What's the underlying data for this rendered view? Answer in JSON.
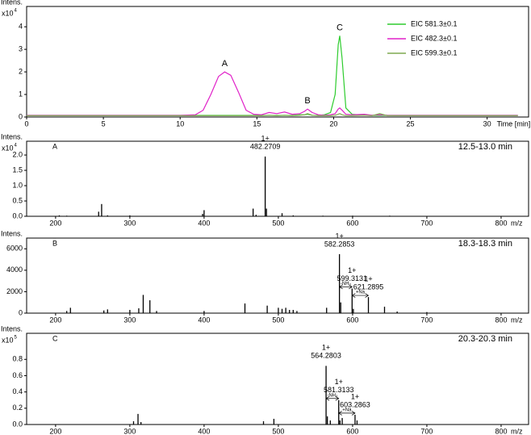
{
  "chart_data": [
    {
      "type": "line",
      "ylabel": "Intens.",
      "y_multiplier": "x10",
      "y_exponent": "4",
      "xlabel": "Time [min]",
      "xlim": [
        0,
        32.7
      ],
      "ylim": [
        0,
        4.9
      ],
      "xticks": [
        0,
        5,
        10,
        15,
        20,
        25,
        30
      ],
      "yticks": [
        0,
        1,
        2,
        3,
        4
      ],
      "legend": "upper right",
      "x": [
        0,
        2,
        4,
        6,
        8,
        10,
        11,
        11.5,
        12,
        12.5,
        12.9,
        13.3,
        13.8,
        14.3,
        14.8,
        15.3,
        15.8,
        16.3,
        16.8,
        17.3,
        17.8,
        18.1,
        18.3,
        18.6,
        19,
        19.4,
        19.8,
        20.1,
        20.3,
        20.4,
        20.55,
        20.8,
        21.2,
        22,
        22.5,
        23,
        23.5,
        24,
        26,
        28,
        30,
        32
      ],
      "series": [
        {
          "name": "EIC 581.3±0.1",
          "color": "#2ecc2e",
          "values": [
            0.07,
            0.07,
            0.07,
            0.07,
            0.07,
            0.07,
            0.07,
            0.07,
            0.07,
            0.07,
            0.07,
            0.07,
            0.07,
            0.07,
            0.07,
            0.07,
            0.07,
            0.07,
            0.07,
            0.07,
            0.1,
            0.1,
            0.12,
            0.08,
            0.07,
            0.1,
            0.2,
            1.0,
            3.2,
            3.6,
            2.6,
            0.4,
            0.12,
            0.08,
            0.07,
            0.07,
            0.07,
            0.07,
            0.07,
            0.07,
            0.07,
            0.07
          ]
        },
        {
          "name": "EIC 482.3±0.1",
          "color": "#e020c8",
          "values": [
            0.07,
            0.07,
            0.07,
            0.07,
            0.07,
            0.07,
            0.1,
            0.3,
            1.0,
            1.8,
            2.0,
            1.85,
            1.1,
            0.3,
            0.12,
            0.1,
            0.2,
            0.15,
            0.22,
            0.12,
            0.15,
            0.25,
            0.35,
            0.2,
            0.1,
            0.08,
            0.1,
            0.15,
            0.35,
            0.4,
            0.3,
            0.12,
            0.1,
            0.12,
            0.08,
            0.1,
            0.08,
            0.07,
            0.07,
            0.07,
            0.07,
            0.07
          ]
        },
        {
          "name": "EIC 599.3±0.1",
          "color": "#7faa50",
          "values": [
            0.06,
            0.06,
            0.06,
            0.06,
            0.06,
            0.06,
            0.06,
            0.06,
            0.06,
            0.06,
            0.06,
            0.06,
            0.06,
            0.06,
            0.06,
            0.06,
            0.08,
            0.06,
            0.08,
            0.06,
            0.08,
            0.1,
            0.15,
            0.08,
            0.06,
            0.06,
            0.06,
            0.08,
            0.12,
            0.15,
            0.1,
            0.06,
            0.06,
            0.08,
            0.06,
            0.15,
            0.06,
            0.06,
            0.06,
            0.06,
            0.06,
            0.06
          ]
        }
      ],
      "annotations": [
        {
          "text": "A",
          "x": 12.9
        },
        {
          "text": "B",
          "x": 18.3
        },
        {
          "text": "C",
          "x": 20.4
        }
      ]
    },
    {
      "type": "stick",
      "ylabel": "Intens.",
      "y_multiplier": "x10",
      "y_exponent": "4",
      "xlabel": "m/z",
      "panel_label": "A",
      "time_range": "12.5-13.0 min",
      "xlim": [
        161,
        837
      ],
      "ylim": [
        0,
        2.45
      ],
      "xticks": [
        200,
        300,
        400,
        500,
        600,
        700,
        800
      ],
      "yticks": [
        {
          "value": 0,
          "label": "0.0"
        },
        {
          "value": 0.5,
          "label": "0.5"
        },
        {
          "value": 1,
          "label": "1.0"
        },
        {
          "value": 1.5,
          "label": "1.5"
        },
        {
          "value": 2,
          "label": "2.0"
        }
      ],
      "x": [
        205,
        215,
        258,
        262,
        270,
        300,
        398,
        400,
        466,
        470,
        482.2709,
        484,
        505,
        520,
        560,
        600,
        650
      ],
      "values": [
        0.03,
        0.02,
        0.15,
        0.4,
        0.03,
        0.03,
        0.08,
        0.2,
        0.25,
        0.05,
        1.95,
        0.25,
        0.1,
        0.03,
        0.02,
        0.02,
        0.02
      ],
      "peak_labels": [
        {
          "x": 482.2709,
          "text": [
            "1+",
            "482.2709"
          ]
        }
      ]
    },
    {
      "type": "stick",
      "ylabel": "Intens.",
      "xlabel": "m/z",
      "panel_label": "B",
      "time_range": "18.3-18.3 min",
      "xlim": [
        161,
        837
      ],
      "ylim": [
        0,
        7000
      ],
      "xticks": [
        200,
        300,
        400,
        500,
        600,
        700,
        800
      ],
      "yticks": [
        0,
        2000,
        4000,
        6000
      ],
      "x": [
        215,
        220,
        265,
        270,
        300,
        312,
        318,
        327,
        336,
        400,
        455,
        485,
        500,
        505,
        510,
        515,
        520,
        525,
        565,
        582.2853,
        584,
        599.3131,
        601,
        621.2895,
        643,
        660,
        700
      ],
      "values": [
        200,
        500,
        250,
        350,
        300,
        450,
        1700,
        1200,
        200,
        200,
        900,
        700,
        500,
        400,
        500,
        300,
        300,
        200,
        500,
        5500,
        1000,
        2300,
        400,
        1500,
        600,
        150,
        100
      ],
      "peak_labels": [
        {
          "x": 582.2853,
          "text": [
            "1+",
            "582.2853"
          ]
        },
        {
          "x": 599.3131,
          "text": [
            "1+",
            "599.3131"
          ]
        },
        {
          "x": 621.2895,
          "text": [
            "1+",
            "621.2895"
          ]
        }
      ],
      "gaps": [
        {
          "from": 582.2853,
          "to": 599.3131,
          "text": "-NH₃"
        },
        {
          "from": 599.3131,
          "to": 621.2895,
          "text": "+Na"
        }
      ]
    },
    {
      "type": "stick",
      "ylabel": "Intens.",
      "y_multiplier": "x10",
      "y_exponent": "5",
      "xlabel": "m/z",
      "panel_label": "C",
      "time_range": "20.3-20.3 min",
      "xlim": [
        161,
        837
      ],
      "ylim": [
        0,
        1.12
      ],
      "xticks": [
        200,
        300,
        400,
        500,
        600,
        700,
        800
      ],
      "yticks": [
        {
          "value": 0,
          "label": "0.0"
        },
        {
          "value": 0.2,
          "label": "0.2"
        },
        {
          "value": 0.4,
          "label": "0.4"
        },
        {
          "value": 0.6,
          "label": "0.6"
        },
        {
          "value": 0.8,
          "label": "0.8"
        }
      ],
      "x": [
        305,
        311,
        315,
        480,
        494,
        564.2803,
        566,
        570,
        581.3133,
        583,
        586,
        603.2863,
        606
      ],
      "values": [
        0.04,
        0.13,
        0.03,
        0.04,
        0.07,
        0.72,
        0.1,
        0.05,
        0.3,
        0.05,
        0.08,
        0.12,
        0.05
      ],
      "peak_labels": [
        {
          "x": 564.2803,
          "text": [
            "1+",
            "564.2803"
          ]
        },
        {
          "x": 581.3133,
          "text": [
            "1+",
            "581.3133"
          ]
        },
        {
          "x": 603.2863,
          "text": [
            "1+",
            "603.2863"
          ]
        }
      ],
      "gaps": [
        {
          "from": 564.2803,
          "to": 581.3133,
          "text": "-NH₃"
        },
        {
          "from": 581.3133,
          "to": 603.2863,
          "text": "+Na"
        }
      ]
    }
  ]
}
